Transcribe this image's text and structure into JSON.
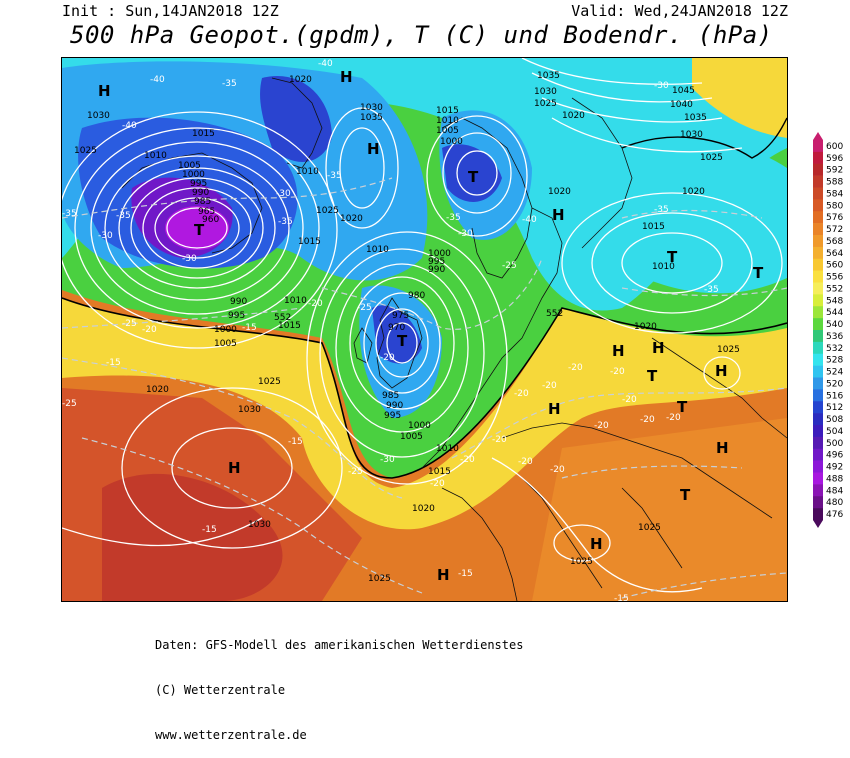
{
  "header": {
    "init": "Init : Sun,14JAN2018 12Z",
    "valid": "Valid: Wed,24JAN2018 12Z",
    "title": "500 hPa Geopot.(gpdm), T (C) und Bodendr. (hPa)"
  },
  "footer": {
    "line1": "Daten: GFS-Modell des amerikanischen Wetterdienstes",
    "line2": "(C) Wetterzentrale",
    "line3": "www.wetterzentrale.de"
  },
  "colorbar": {
    "values": [
      "600",
      "596",
      "592",
      "588",
      "584",
      "580",
      "576",
      "572",
      "568",
      "564",
      "560",
      "556",
      "552",
      "548",
      "544",
      "540",
      "536",
      "532",
      "528",
      "524",
      "520",
      "516",
      "512",
      "508",
      "504",
      "500",
      "496",
      "492",
      "488",
      "484",
      "480",
      "476"
    ],
    "colors": [
      "#c81e6e",
      "#c01a3c",
      "#b8282a",
      "#c23a2a",
      "#cc4a28",
      "#d85a26",
      "#e26e24",
      "#ea8428",
      "#f09a2c",
      "#f4b030",
      "#f8c832",
      "#fae040",
      "#f6ee5a",
      "#d8ee3a",
      "#9ce63a",
      "#5cd83e",
      "#30c878",
      "#2cd8bc",
      "#34e4ee",
      "#30c4f0",
      "#3098e8",
      "#2870e0",
      "#2444d0",
      "#2a2cc0",
      "#3c1cbc",
      "#561ab4",
      "#7018c8",
      "#8c18d8",
      "#a818e0",
      "#8a14b4",
      "#6a1088",
      "#4a0a5c"
    ]
  },
  "map": {
    "pressure_systems": [
      {
        "type": "H",
        "label": "H"
      },
      {
        "type": "H",
        "label": "H"
      },
      {
        "type": "H",
        "label": "H"
      },
      {
        "type": "H",
        "label": "H"
      },
      {
        "type": "H",
        "label": "H"
      },
      {
        "type": "H",
        "label": "H"
      },
      {
        "type": "H",
        "label": "H"
      },
      {
        "type": "H",
        "label": "H"
      },
      {
        "type": "H",
        "label": "H"
      },
      {
        "type": "H",
        "label": "H"
      },
      {
        "type": "H",
        "label": "H"
      },
      {
        "type": "H",
        "label": "H"
      },
      {
        "type": "T",
        "label": "T"
      },
      {
        "type": "T",
        "label": "T"
      },
      {
        "type": "T",
        "label": "T"
      },
      {
        "type": "T",
        "label": "T"
      },
      {
        "type": "T",
        "label": "T"
      },
      {
        "type": "T",
        "label": "T"
      },
      {
        "type": "T",
        "label": "T"
      },
      {
        "type": "T",
        "label": "T"
      }
    ],
    "isobar_labels": [
      "1030",
      "1025",
      "1010",
      "1005",
      "1000",
      "995",
      "990",
      "985",
      "980",
      "975",
      "970",
      "965",
      "960",
      "1015",
      "1020",
      "1035",
      "1040",
      "1045"
    ],
    "isotherm_labels": [
      "-40",
      "-35",
      "-30",
      "-25",
      "-20",
      "-15"
    ],
    "geopotential_labels": [
      "552",
      "552"
    ]
  }
}
